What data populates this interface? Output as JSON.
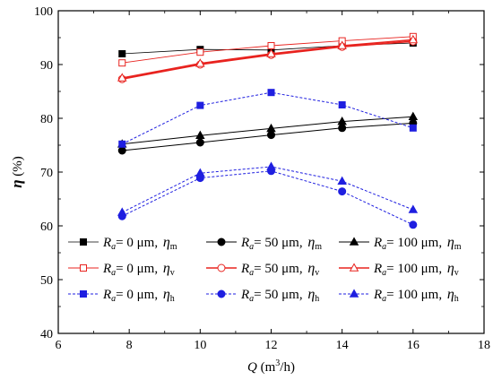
{
  "chart_data": {
    "type": "line",
    "xlabel": {
      "symbol": "Q",
      "unit": " (m",
      "unit_sup": "3",
      "unit_end": "/h)"
    },
    "ylabel": {
      "symbol": "η",
      "unit": " (%)"
    },
    "xlim": [
      6,
      18
    ],
    "ylim": [
      40,
      100
    ],
    "xticks": [
      6,
      8,
      10,
      12,
      14,
      16,
      18
    ],
    "yticks": [
      40,
      50,
      60,
      70,
      80,
      90,
      100
    ],
    "x": [
      7.8,
      10,
      12,
      14,
      16
    ],
    "grid": false,
    "legend_position": "bottom",
    "series": [
      {
        "name": "Ra = 0 μm, ηm",
        "legend": {
          "ra_sym": "R",
          "ra_sub": "a",
          "ra_text": "= 0 μm,",
          "eta": "η",
          "eta_sub": "m"
        },
        "color": "#000000",
        "marker": "square",
        "filled": true,
        "dash": "solid",
        "width": 0.8,
        "values": [
          92.0,
          92.8,
          92.7,
          93.5,
          94.0
        ]
      },
      {
        "name": "Ra = 50 μm, ηm",
        "legend": {
          "ra_sym": "R",
          "ra_sub": "a",
          "ra_text": "= 50 μm,",
          "eta": "η",
          "eta_sub": "m"
        },
        "color": "#000000",
        "marker": "circle",
        "filled": true,
        "dash": "solid",
        "width": 1.0,
        "values": [
          74.0,
          75.5,
          76.9,
          78.2,
          79.1
        ]
      },
      {
        "name": "Ra = 100 μm, ηm",
        "legend": {
          "ra_sym": "R",
          "ra_sub": "a",
          "ra_text": "= 100 μm,",
          "eta": "η",
          "eta_sub": "m"
        },
        "color": "#000000",
        "marker": "triangle",
        "filled": true,
        "dash": "solid",
        "width": 1.0,
        "values": [
          75.2,
          76.8,
          78.1,
          79.4,
          80.3
        ]
      },
      {
        "name": "Ra = 0 μm, ηv",
        "legend": {
          "ra_sym": "R",
          "ra_sub": "a",
          "ra_text": "= 0 μm,",
          "eta": "η",
          "eta_sub": "v"
        },
        "color": "#e8231f",
        "marker": "square",
        "filled": false,
        "dash": "solid",
        "width": 0.9,
        "values": [
          90.3,
          92.3,
          93.5,
          94.4,
          95.2
        ]
      },
      {
        "name": "Ra = 50 μm, ηv",
        "legend": {
          "ra_sym": "R",
          "ra_sub": "a",
          "ra_text": "= 50 μm,",
          "eta": "η",
          "eta_sub": "v"
        },
        "color": "#e8231f",
        "marker": "circle",
        "filled": false,
        "dash": "solid",
        "width": 1.6,
        "values": [
          87.3,
          90.0,
          91.8,
          93.3,
          94.3
        ]
      },
      {
        "name": "Ra = 100 μm, ηv",
        "legend": {
          "ra_sym": "R",
          "ra_sub": "a",
          "ra_text": "= 100 μm,",
          "eta": "η",
          "eta_sub": "v"
        },
        "color": "#e8231f",
        "marker": "triangle",
        "filled": false,
        "dash": "solid",
        "width": 1.6,
        "values": [
          87.5,
          90.2,
          92.0,
          93.5,
          94.6
        ]
      },
      {
        "name": "Ra = 0 μm, ηh",
        "legend": {
          "ra_sym": "R",
          "ra_sub": "a",
          "ra_text": "= 0 μm,",
          "eta": "η",
          "eta_sub": "h"
        },
        "color": "#1f1fe0",
        "marker": "square",
        "filled": true,
        "dash": "dashed",
        "width": 1.0,
        "values": [
          75.2,
          82.4,
          84.8,
          82.5,
          78.2
        ]
      },
      {
        "name": "Ra = 50 μm, ηh",
        "legend": {
          "ra_sym": "R",
          "ra_sub": "a",
          "ra_text": "= 50 μm,",
          "eta": "η",
          "eta_sub": "h"
        },
        "color": "#1f1fe0",
        "marker": "circle",
        "filled": true,
        "dash": "dashed",
        "width": 1.0,
        "values": [
          61.8,
          68.9,
          70.2,
          66.4,
          60.2
        ]
      },
      {
        "name": "Ra = 100 μm, ηh",
        "legend": {
          "ra_sym": "R",
          "ra_sub": "a",
          "ra_text": "= 100 μm,",
          "eta": "η",
          "eta_sub": "h"
        },
        "color": "#1f1fe0",
        "marker": "triangle",
        "filled": true,
        "dash": "dashed",
        "width": 1.0,
        "values": [
          62.5,
          69.8,
          71.0,
          68.3,
          63.0
        ]
      }
    ]
  }
}
